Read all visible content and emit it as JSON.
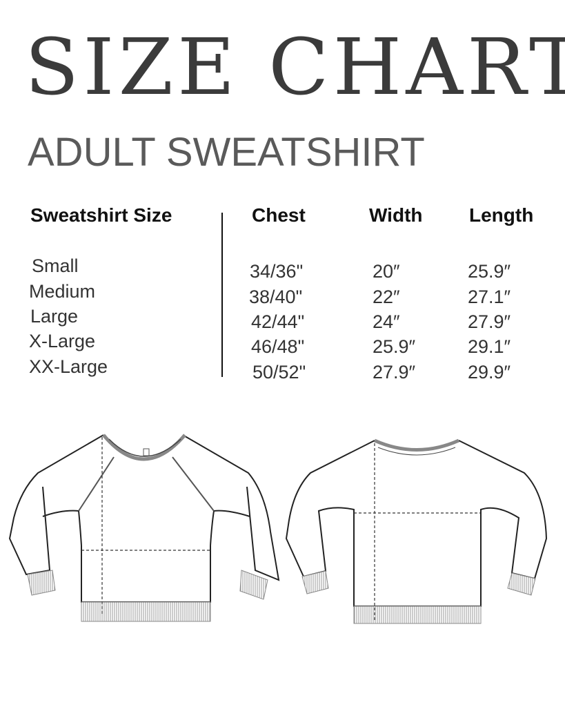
{
  "title": "SIZE CHART",
  "subtitle": "ADULT SWEATSHIRT",
  "table": {
    "headers": [
      "Sweatshirt Size",
      "Chest",
      "Width",
      "Length"
    ],
    "rows": [
      [
        "Small",
        "34/36\"",
        "20″",
        "25.9″"
      ],
      [
        "Medium",
        "38/40\"",
        "22″",
        "27.1″"
      ],
      [
        "Large",
        "42/44\"",
        "24″",
        "27.9″"
      ],
      [
        "X-Large",
        "46/48\"",
        "25.9″",
        "29.1″"
      ],
      [
        "XX-Large",
        "50/52\"",
        "27.9″",
        "29.9″"
      ]
    ]
  },
  "illustrations": [
    "sweatshirt-front",
    "sweatshirt-back"
  ]
}
